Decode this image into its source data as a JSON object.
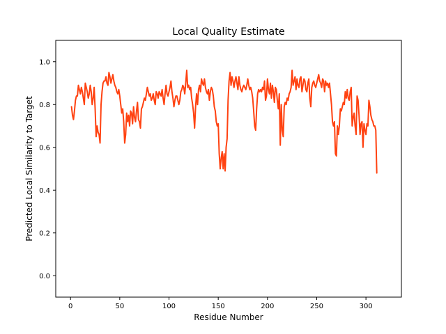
{
  "chart_data": {
    "type": "line",
    "title": "Local Quality Estimate",
    "xlabel": "Residue Number",
    "ylabel": "Predicted Local Similarity to Target",
    "xlim": [
      -15,
      336
    ],
    "ylim": [
      -0.1,
      1.1
    ],
    "xticks": [
      0,
      50,
      100,
      150,
      200,
      250,
      300
    ],
    "yticks": [
      0.0,
      0.2,
      0.4,
      0.6,
      0.8,
      1.0
    ],
    "xtick_labels": [
      "0",
      "50",
      "100",
      "150",
      "200",
      "250",
      "300"
    ],
    "ytick_labels": [
      "0.0",
      "0.2",
      "0.4",
      "0.6",
      "0.8",
      "1.0"
    ],
    "grid": false,
    "series": [
      {
        "color": "#ff4211",
        "points": [
          [
            1,
            0.79
          ],
          [
            2,
            0.75
          ],
          [
            3,
            0.73
          ],
          [
            4,
            0.77
          ],
          [
            5,
            0.82
          ],
          [
            6,
            0.84
          ],
          [
            7,
            0.84
          ],
          [
            8,
            0.89
          ],
          [
            9,
            0.87
          ],
          [
            10,
            0.85
          ],
          [
            11,
            0.88
          ],
          [
            12,
            0.86
          ],
          [
            13,
            0.83
          ],
          [
            14,
            0.8
          ],
          [
            15,
            0.9
          ],
          [
            16,
            0.88
          ],
          [
            17,
            0.86
          ],
          [
            18,
            0.83
          ],
          [
            19,
            0.85
          ],
          [
            20,
            0.89
          ],
          [
            21,
            0.86
          ],
          [
            22,
            0.8
          ],
          [
            23,
            0.83
          ],
          [
            24,
            0.88
          ],
          [
            25,
            0.78
          ],
          [
            26,
            0.65
          ],
          [
            27,
            0.7
          ],
          [
            28,
            0.67
          ],
          [
            29,
            0.66
          ],
          [
            30,
            0.62
          ],
          [
            31,
            0.8
          ],
          [
            32,
            0.86
          ],
          [
            33,
            0.9
          ],
          [
            34,
            0.91
          ],
          [
            35,
            0.91
          ],
          [
            36,
            0.93
          ],
          [
            37,
            0.9
          ],
          [
            38,
            0.89
          ],
          [
            39,
            0.95
          ],
          [
            40,
            0.93
          ],
          [
            41,
            0.9
          ],
          [
            42,
            0.92
          ],
          [
            43,
            0.94
          ],
          [
            44,
            0.91
          ],
          [
            45,
            0.89
          ],
          [
            46,
            0.88
          ],
          [
            47,
            0.86
          ],
          [
            48,
            0.85
          ],
          [
            49,
            0.87
          ],
          [
            50,
            0.84
          ],
          [
            51,
            0.8
          ],
          [
            52,
            0.76
          ],
          [
            53,
            0.78
          ],
          [
            54,
            0.72
          ],
          [
            55,
            0.62
          ],
          [
            56,
            0.66
          ],
          [
            57,
            0.76
          ],
          [
            58,
            0.72
          ],
          [
            59,
            0.75
          ],
          [
            60,
            0.7
          ],
          [
            61,
            0.77
          ],
          [
            62,
            0.76
          ],
          [
            63,
            0.71
          ],
          [
            64,
            0.79
          ],
          [
            65,
            0.74
          ],
          [
            66,
            0.72
          ],
          [
            67,
            0.77
          ],
          [
            68,
            0.81
          ],
          [
            69,
            0.73
          ],
          [
            70,
            0.72
          ],
          [
            71,
            0.69
          ],
          [
            72,
            0.78
          ],
          [
            73,
            0.79
          ],
          [
            74,
            0.81
          ],
          [
            75,
            0.83
          ],
          [
            76,
            0.82
          ],
          [
            77,
            0.85
          ],
          [
            78,
            0.88
          ],
          [
            79,
            0.86
          ],
          [
            80,
            0.84
          ],
          [
            81,
            0.85
          ],
          [
            82,
            0.82
          ],
          [
            83,
            0.83
          ],
          [
            84,
            0.85
          ],
          [
            85,
            0.82
          ],
          [
            86,
            0.8
          ],
          [
            87,
            0.86
          ],
          [
            88,
            0.85
          ],
          [
            89,
            0.83
          ],
          [
            90,
            0.86
          ],
          [
            91,
            0.85
          ],
          [
            92,
            0.84
          ],
          [
            93,
            0.87
          ],
          [
            94,
            0.83
          ],
          [
            95,
            0.8
          ],
          [
            96,
            0.85
          ],
          [
            97,
            0.89
          ],
          [
            98,
            0.85
          ],
          [
            99,
            0.84
          ],
          [
            100,
            0.86
          ],
          [
            101,
            0.88
          ],
          [
            102,
            0.91
          ],
          [
            103,
            0.86
          ],
          [
            104,
            0.83
          ],
          [
            105,
            0.79
          ],
          [
            106,
            0.82
          ],
          [
            107,
            0.84
          ],
          [
            108,
            0.84
          ],
          [
            109,
            0.82
          ],
          [
            110,
            0.8
          ],
          [
            111,
            0.82
          ],
          [
            112,
            0.86
          ],
          [
            113,
            0.87
          ],
          [
            114,
            0.89
          ],
          [
            115,
            0.88
          ],
          [
            116,
            0.85
          ],
          [
            117,
            0.9
          ],
          [
            118,
            0.96
          ],
          [
            119,
            0.88
          ],
          [
            120,
            0.89
          ],
          [
            121,
            0.87
          ],
          [
            122,
            0.88
          ],
          [
            123,
            0.83
          ],
          [
            124,
            0.8
          ],
          [
            125,
            0.76
          ],
          [
            126,
            0.69
          ],
          [
            127,
            0.79
          ],
          [
            128,
            0.85
          ],
          [
            129,
            0.8
          ],
          [
            130,
            0.87
          ],
          [
            131,
            0.89
          ],
          [
            132,
            0.86
          ],
          [
            133,
            0.92
          ],
          [
            134,
            0.9
          ],
          [
            135,
            0.89
          ],
          [
            136,
            0.92
          ],
          [
            137,
            0.88
          ],
          [
            138,
            0.86
          ],
          [
            139,
            0.85
          ],
          [
            140,
            0.87
          ],
          [
            141,
            0.82
          ],
          [
            142,
            0.86
          ],
          [
            143,
            0.88
          ],
          [
            144,
            0.87
          ],
          [
            145,
            0.84
          ],
          [
            146,
            0.79
          ],
          [
            147,
            0.77
          ],
          [
            148,
            0.72
          ],
          [
            149,
            0.7
          ],
          [
            150,
            0.71
          ],
          [
            151,
            0.57
          ],
          [
            152,
            0.5
          ],
          [
            153,
            0.55
          ],
          [
            154,
            0.58
          ],
          [
            155,
            0.5
          ],
          [
            156,
            0.57
          ],
          [
            157,
            0.49
          ],
          [
            158,
            0.6
          ],
          [
            159,
            0.64
          ],
          [
            160,
            0.82
          ],
          [
            161,
            0.91
          ],
          [
            162,
            0.95
          ],
          [
            163,
            0.89
          ],
          [
            164,
            0.93
          ],
          [
            165,
            0.91
          ],
          [
            166,
            0.88
          ],
          [
            167,
            0.91
          ],
          [
            168,
            0.93
          ],
          [
            169,
            0.9
          ],
          [
            170,
            0.87
          ],
          [
            171,
            0.93
          ],
          [
            172,
            0.89
          ],
          [
            173,
            0.87
          ],
          [
            174,
            0.86
          ],
          [
            175,
            0.88
          ],
          [
            176,
            0.89
          ],
          [
            177,
            0.88
          ],
          [
            178,
            0.87
          ],
          [
            179,
            0.89
          ],
          [
            180,
            0.92
          ],
          [
            181,
            0.89
          ],
          [
            182,
            0.87
          ],
          [
            183,
            0.88
          ],
          [
            184,
            0.86
          ],
          [
            185,
            0.83
          ],
          [
            186,
            0.77
          ],
          [
            187,
            0.7
          ],
          [
            188,
            0.68
          ],
          [
            189,
            0.78
          ],
          [
            190,
            0.85
          ],
          [
            191,
            0.87
          ],
          [
            192,
            0.86
          ],
          [
            193,
            0.87
          ],
          [
            194,
            0.86
          ],
          [
            195,
            0.88
          ],
          [
            196,
            0.87
          ],
          [
            197,
            0.91
          ],
          [
            198,
            0.82
          ],
          [
            199,
            0.84
          ],
          [
            200,
            0.92
          ],
          [
            201,
            0.87
          ],
          [
            202,
            0.85
          ],
          [
            203,
            0.9
          ],
          [
            204,
            0.83
          ],
          [
            205,
            0.89
          ],
          [
            206,
            0.86
          ],
          [
            207,
            0.81
          ],
          [
            208,
            0.88
          ],
          [
            209,
            0.87
          ],
          [
            210,
            0.82
          ],
          [
            211,
            0.78
          ],
          [
            212,
            0.85
          ],
          [
            213,
            0.61
          ],
          [
            214,
            0.8
          ],
          [
            215,
            0.68
          ],
          [
            216,
            0.65
          ],
          [
            217,
            0.79
          ],
          [
            218,
            0.81
          ],
          [
            219,
            0.8
          ],
          [
            220,
            0.83
          ],
          [
            221,
            0.82
          ],
          [
            222,
            0.85
          ],
          [
            223,
            0.86
          ],
          [
            224,
            0.88
          ],
          [
            225,
            0.96
          ],
          [
            226,
            0.89
          ],
          [
            227,
            0.91
          ],
          [
            228,
            0.93
          ],
          [
            229,
            0.87
          ],
          [
            230,
            0.92
          ],
          [
            231,
            0.89
          ],
          [
            232,
            0.88
          ],
          [
            233,
            0.92
          ],
          [
            234,
            0.93
          ],
          [
            235,
            0.86
          ],
          [
            236,
            0.89
          ],
          [
            237,
            0.92
          ],
          [
            238,
            0.91
          ],
          [
            239,
            0.87
          ],
          [
            240,
            0.86
          ],
          [
            241,
            0.9
          ],
          [
            242,
            0.92
          ],
          [
            243,
            0.83
          ],
          [
            244,
            0.79
          ],
          [
            245,
            0.88
          ],
          [
            246,
            0.9
          ],
          [
            247,
            0.91
          ],
          [
            248,
            0.89
          ],
          [
            249,
            0.88
          ],
          [
            250,
            0.9
          ],
          [
            251,
            0.92
          ],
          [
            252,
            0.94
          ],
          [
            253,
            0.91
          ],
          [
            254,
            0.9
          ],
          [
            255,
            0.88
          ],
          [
            256,
            0.92
          ],
          [
            257,
            0.91
          ],
          [
            258,
            0.86
          ],
          [
            259,
            0.91
          ],
          [
            260,
            0.89
          ],
          [
            261,
            0.9
          ],
          [
            262,
            0.88
          ],
          [
            263,
            0.9
          ],
          [
            264,
            0.85
          ],
          [
            265,
            0.8
          ],
          [
            266,
            0.72
          ],
          [
            267,
            0.7
          ],
          [
            268,
            0.72
          ],
          [
            269,
            0.57
          ],
          [
            270,
            0.56
          ],
          [
            271,
            0.7
          ],
          [
            272,
            0.66
          ],
          [
            273,
            0.7
          ],
          [
            274,
            0.78
          ],
          [
            275,
            0.77
          ],
          [
            276,
            0.79
          ],
          [
            277,
            0.81
          ],
          [
            278,
            0.8
          ],
          [
            279,
            0.86
          ],
          [
            280,
            0.83
          ],
          [
            281,
            0.87
          ],
          [
            282,
            0.83
          ],
          [
            283,
            0.82
          ],
          [
            284,
            0.86
          ],
          [
            285,
            0.88
          ],
          [
            286,
            0.7
          ],
          [
            287,
            0.74
          ],
          [
            288,
            0.76
          ],
          [
            289,
            0.7
          ],
          [
            290,
            0.66
          ],
          [
            291,
            0.84
          ],
          [
            292,
            0.82
          ],
          [
            293,
            0.75
          ],
          [
            294,
            0.66
          ],
          [
            295,
            0.71
          ],
          [
            296,
            0.72
          ],
          [
            297,
            0.6
          ],
          [
            298,
            0.71
          ],
          [
            299,
            0.68
          ],
          [
            300,
            0.66
          ],
          [
            301,
            0.71
          ],
          [
            302,
            0.7
          ],
          [
            303,
            0.82
          ],
          [
            304,
            0.79
          ],
          [
            305,
            0.75
          ],
          [
            306,
            0.73
          ],
          [
            307,
            0.72
          ],
          [
            308,
            0.7
          ],
          [
            309,
            0.7
          ],
          [
            310,
            0.68
          ],
          [
            311,
            0.48
          ]
        ]
      }
    ]
  }
}
